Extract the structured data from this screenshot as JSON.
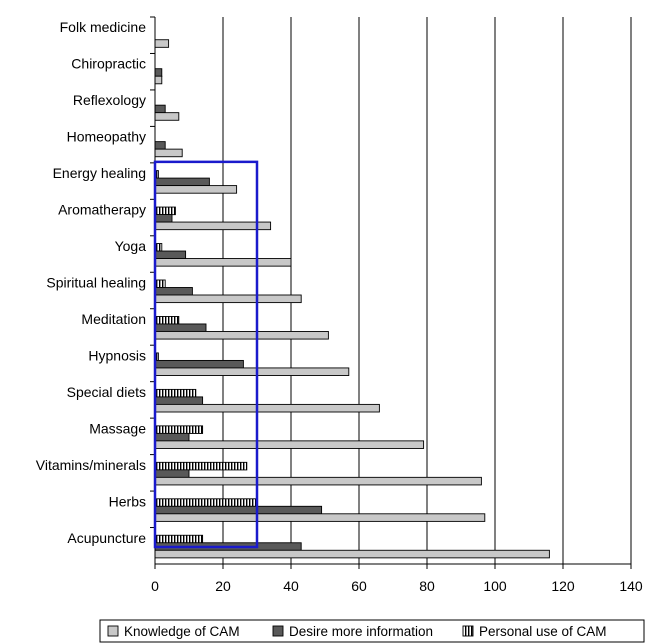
{
  "chart_data": {
    "type": "bar",
    "orientation": "horizontal",
    "categories": [
      "Folk medicine",
      "Chiropractic",
      "Reflexology",
      "Homeopathy",
      "Energy healing",
      "Aromatherapy",
      "Yoga",
      "Spiritual healing",
      "Meditation",
      "Hypnosis",
      "Special diets",
      "Massage",
      "Vitamins/minerals",
      "Herbs",
      "Acupuncture"
    ],
    "series": [
      {
        "name": "Personal use of CAM",
        "pattern": "vertical-stripes",
        "color": "#ffffff",
        "values": [
          0,
          0,
          0,
          0,
          1,
          6,
          2,
          3,
          7,
          1,
          12,
          14,
          27,
          30,
          14
        ]
      },
      {
        "name": "Desire more information",
        "pattern": "solid",
        "color": "#595959",
        "values": [
          0,
          2,
          3,
          3,
          16,
          5,
          9,
          11,
          15,
          26,
          14,
          10,
          10,
          49,
          43
        ]
      },
      {
        "name": "Knowledge of CAM",
        "pattern": "solid",
        "color": "#c8c8c8",
        "values": [
          4,
          2,
          7,
          8,
          24,
          34,
          40,
          43,
          51,
          57,
          66,
          79,
          96,
          97,
          116
        ]
      }
    ],
    "legend_order": [
      "Knowledge of CAM",
      "Desire more information",
      "Personal use of CAM"
    ],
    "xlim": [
      0,
      140
    ],
    "xticks": [
      "0",
      "20",
      "40",
      "60",
      "80",
      "100",
      "120",
      "140"
    ],
    "grid": "vertical",
    "legend_position": "bottom",
    "highlight_box": {
      "x_range": [
        0,
        30
      ],
      "categories_from": "Energy healing",
      "categories_to": "Acupuncture",
      "color": "#1a1acc"
    }
  }
}
